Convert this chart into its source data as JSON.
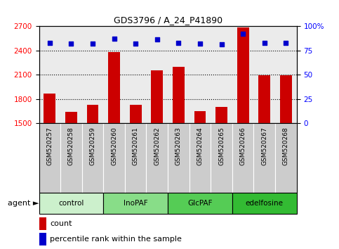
{
  "title": "GDS3796 / A_24_P41890",
  "samples": [
    "GSM520257",
    "GSM520258",
    "GSM520259",
    "GSM520260",
    "GSM520261",
    "GSM520262",
    "GSM520263",
    "GSM520264",
    "GSM520265",
    "GSM520266",
    "GSM520267",
    "GSM520268"
  ],
  "counts": [
    1870,
    1640,
    1730,
    2380,
    1730,
    2150,
    2200,
    1650,
    1700,
    2680,
    2090,
    2090
  ],
  "percentiles": [
    83,
    82,
    82,
    87,
    82,
    86,
    83,
    82,
    81,
    92,
    83,
    83
  ],
  "groups": [
    {
      "label": "control",
      "indices": [
        0,
        1,
        2
      ],
      "color": "#ccf0cc"
    },
    {
      "label": "InoPAF",
      "indices": [
        3,
        4,
        5
      ],
      "color": "#88dd88"
    },
    {
      "label": "GlcPAF",
      "indices": [
        6,
        7,
        8
      ],
      "color": "#55cc55"
    },
    {
      "label": "edelfosine",
      "indices": [
        9,
        10,
        11
      ],
      "color": "#33bb33"
    }
  ],
  "bar_color": "#cc0000",
  "dot_color": "#0000cc",
  "ylim_left": [
    1500,
    2700
  ],
  "ylim_right": [
    0,
    100
  ],
  "yticks_left": [
    1500,
    1800,
    2100,
    2400,
    2700
  ],
  "yticks_right": [
    0,
    25,
    50,
    75,
    100
  ],
  "grid_lines": [
    1800,
    2100,
    2400
  ],
  "bar_width": 0.55,
  "legend_count_label": "count",
  "legend_pct_label": "percentile rank within the sample",
  "sample_box_color": "#cccccc",
  "background_plot": "#ebebeb",
  "background_figure": "#ffffff"
}
